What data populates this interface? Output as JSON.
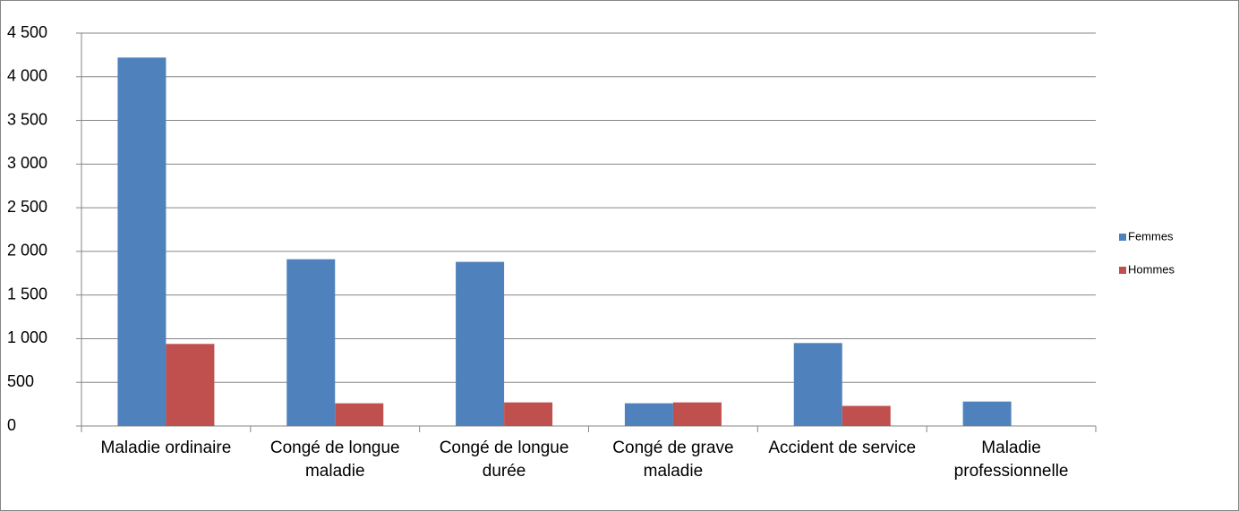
{
  "chart_data": {
    "type": "bar",
    "categories": [
      "Maladie ordinaire",
      "Congé de longue maladie",
      "Congé de longue durée",
      "Congé de grave maladie",
      "Accident de service",
      "Maladie professionnelle"
    ],
    "series": [
      {
        "name": "Femmes",
        "color": "#4f81bd",
        "values": [
          4220,
          1910,
          1880,
          260,
          950,
          280
        ]
      },
      {
        "name": "Hommes",
        "color": "#c0504d",
        "values": [
          940,
          260,
          270,
          270,
          230,
          0
        ]
      }
    ],
    "ylim": [
      0,
      4500
    ],
    "yticks": [
      0,
      500,
      {
        "value": 1000,
        "label": "1 000"
      },
      {
        "value": 1500,
        "label": "1 500"
      },
      {
        "value": 2000,
        "label": "2 000"
      },
      {
        "value": 2500,
        "label": "2 500"
      },
      {
        "value": 3000,
        "label": "3 000"
      },
      {
        "value": 3500,
        "label": "3 500"
      },
      {
        "value": 4000,
        "label": "4 000"
      },
      {
        "value": 4500,
        "label": "4 500"
      }
    ],
    "grid": true,
    "legend": "right"
  }
}
